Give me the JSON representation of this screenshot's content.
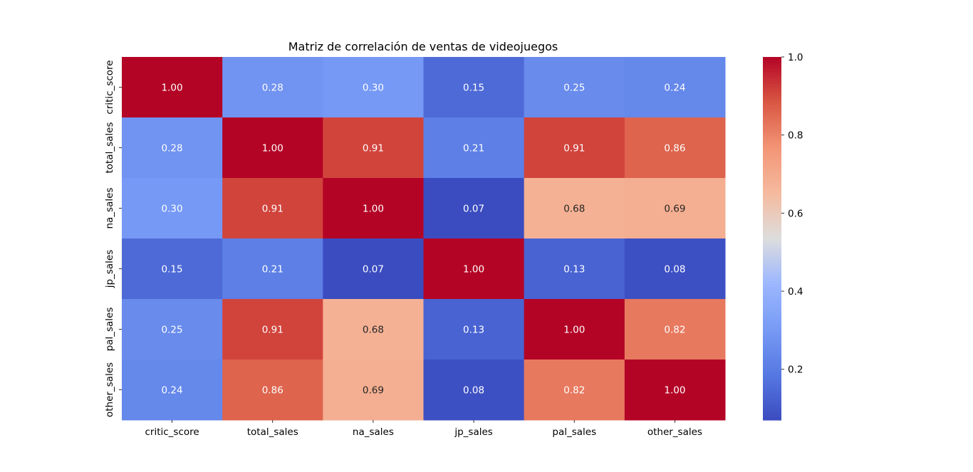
{
  "chart_data": {
    "type": "heatmap",
    "title": "Matriz de correlación de ventas de videojuegos",
    "xlabel": "",
    "ylabel": "",
    "x_labels": [
      "critic_score",
      "total_sales",
      "na_sales",
      "jp_sales",
      "pal_sales",
      "other_sales"
    ],
    "y_labels": [
      "critic_score",
      "total_sales",
      "na_sales",
      "jp_sales",
      "pal_sales",
      "other_sales"
    ],
    "values": [
      [
        1.0,
        0.28,
        0.3,
        0.15,
        0.25,
        0.24
      ],
      [
        0.28,
        1.0,
        0.91,
        0.21,
        0.91,
        0.86
      ],
      [
        0.3,
        0.91,
        1.0,
        0.07,
        0.68,
        0.69
      ],
      [
        0.15,
        0.21,
        0.07,
        1.0,
        0.13,
        0.08
      ],
      [
        0.25,
        0.91,
        0.68,
        0.13,
        1.0,
        0.82
      ],
      [
        0.24,
        0.86,
        0.69,
        0.08,
        0.82,
        1.0
      ]
    ],
    "value_format": "0.00",
    "colormap": "coolwarm",
    "colorbar": {
      "range": [
        0.07,
        1.0
      ],
      "ticks": [
        0.2,
        0.4,
        0.6,
        0.8,
        1.0
      ],
      "tick_labels": [
        "0.2",
        "0.4",
        "0.6",
        "0.8",
        "1.0"
      ]
    },
    "grid": false,
    "legend": "colorbar-right"
  }
}
